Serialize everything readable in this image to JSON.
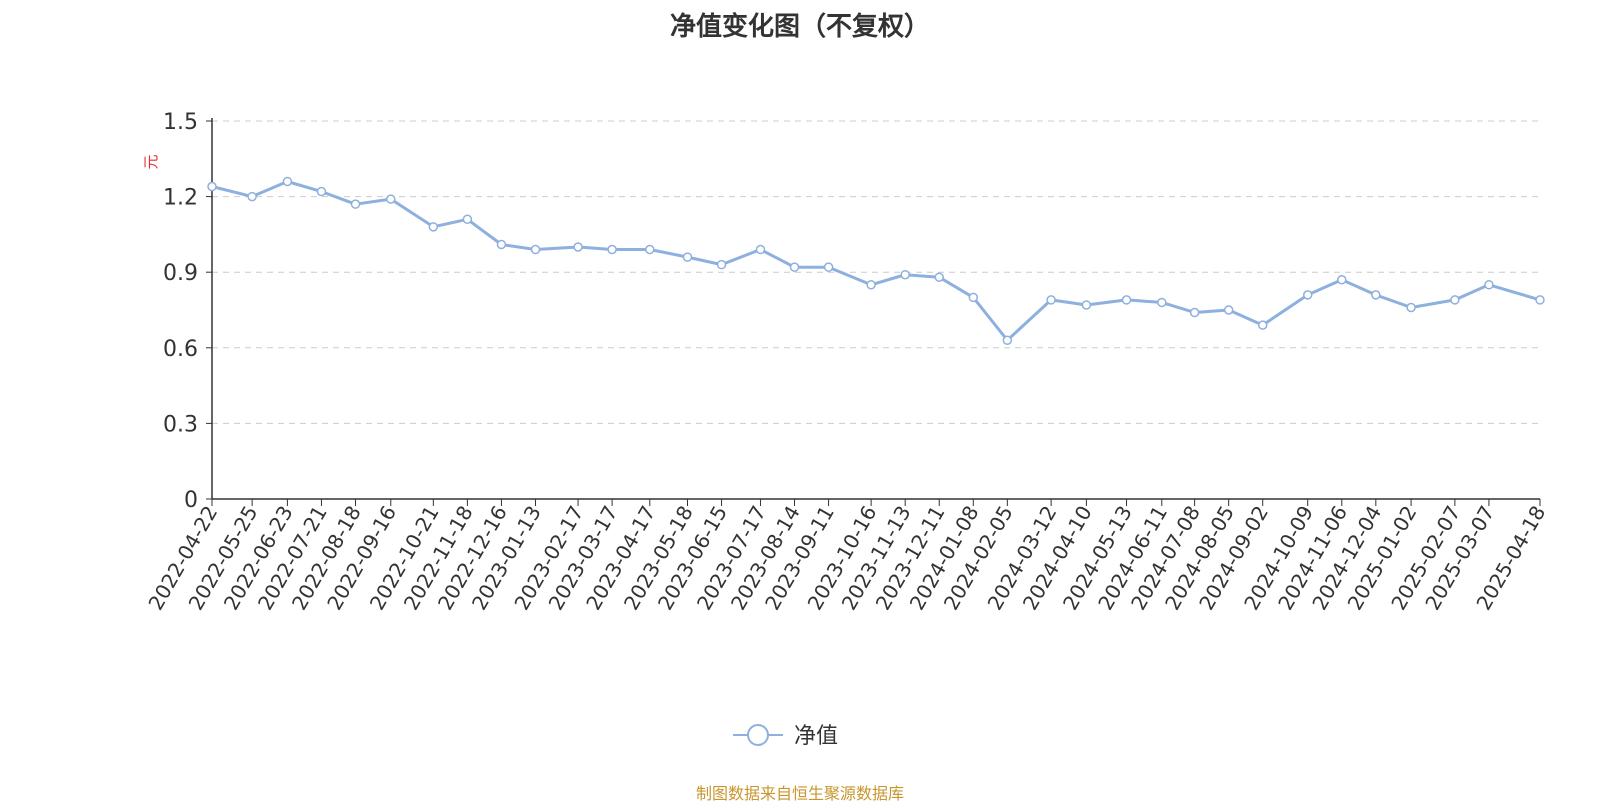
{
  "colors": {
    "line": "#8eb0de",
    "title": "#333333",
    "axis": "#333333",
    "grid": "#cccccc",
    "unit": "#e03030",
    "source": "#c9962e"
  },
  "chart_data": {
    "type": "line",
    "title": "净值变化图（不复权）",
    "ylabel": "元",
    "xlabel": "",
    "ylim": [
      0,
      1.5
    ],
    "y_ticks": [
      "0",
      "0.3",
      "0.6",
      "0.9",
      "1.2",
      "1.5"
    ],
    "grid": true,
    "legend_position": "bottom-center",
    "x_tick_labels": [
      "2022-04-22",
      "2022-05-25",
      "2022-06-23",
      "2022-07-21",
      "2022-08-18",
      "2022-09-16",
      "2022-10-21",
      "2022-11-18",
      "2022-12-16",
      "2023-01-13",
      "2023-02-17",
      "2023-03-17",
      "2023-04-17",
      "2023-05-18",
      "2023-06-15",
      "2023-07-17",
      "2023-08-14",
      "2023-09-11",
      "2023-10-16",
      "2023-11-13",
      "2023-12-11",
      "2024-01-08",
      "2024-02-05",
      "2024-03-12",
      "2024-04-10",
      "2024-05-13",
      "2024-06-11",
      "2024-07-08",
      "2024-08-05",
      "2024-09-02",
      "2024-10-09",
      "2024-11-06",
      "2024-12-04",
      "2025-01-02",
      "2025-02-07",
      "2025-03-07",
      "2025-04-18"
    ],
    "series": [
      {
        "name": "净值",
        "x": [
          "2022-04-22",
          "2022-05-25",
          "2022-06-23",
          "2022-07-21",
          "2022-08-18",
          "2022-09-16",
          "2022-10-21",
          "2022-11-18",
          "2022-12-16",
          "2023-01-13",
          "2023-02-17",
          "2023-03-17",
          "2023-04-17",
          "2023-05-18",
          "2023-06-15",
          "2023-07-17",
          "2023-08-14",
          "2023-09-11",
          "2023-10-16",
          "2023-11-13",
          "2023-12-11",
          "2024-01-08",
          "2024-02-05",
          "2024-03-12",
          "2024-04-10",
          "2024-05-13",
          "2024-06-11",
          "2024-07-08",
          "2024-08-05",
          "2024-09-02",
          "2024-10-09",
          "2024-11-06",
          "2024-12-04",
          "2025-01-02",
          "2025-02-07",
          "2025-03-07",
          "2025-04-18"
        ],
        "values": [
          1.24,
          1.2,
          1.26,
          1.22,
          1.17,
          1.19,
          1.08,
          1.11,
          1.01,
          0.99,
          1.0,
          0.99,
          0.99,
          0.96,
          0.93,
          0.99,
          0.92,
          0.92,
          0.85,
          0.89,
          0.88,
          0.8,
          0.63,
          0.79,
          0.77,
          0.79,
          0.78,
          0.74,
          0.75,
          0.69,
          0.81,
          0.87,
          0.81,
          0.76,
          0.79,
          0.85,
          0.79
        ]
      }
    ]
  },
  "legend": {
    "label": "净值"
  },
  "source_note": "制图数据来自恒生聚源数据库"
}
